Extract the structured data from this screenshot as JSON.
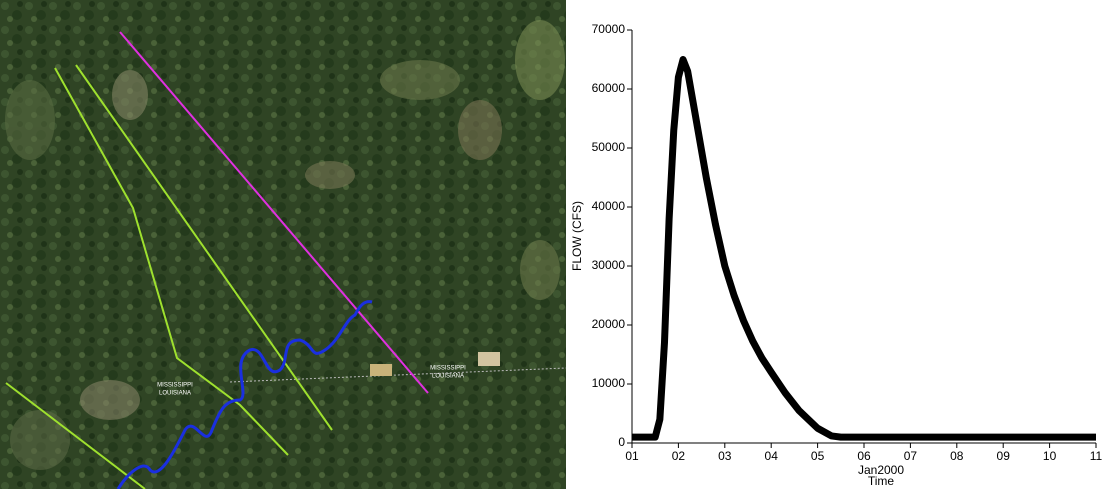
{
  "map": {
    "labels": [
      "MISSISSIPPI",
      "LOUISIANA",
      "MISSISSIPPI",
      "LOUISIANA"
    ]
  },
  "chart_data": {
    "type": "line",
    "y_label": "FLOW (CFS)",
    "x_label": "Time",
    "x_sublabel": "Jan2000",
    "x": [
      1,
      1.5,
      1.6,
      1.7,
      1.8,
      1.9,
      2.0,
      2.1,
      2.2,
      2.4,
      2.6,
      2.8,
      3.0,
      3.2,
      3.4,
      3.6,
      3.8,
      4.0,
      4.3,
      4.6,
      5.0,
      5.3,
      5.5,
      8,
      11
    ],
    "values": [
      1000,
      1000,
      4000,
      17000,
      38000,
      53000,
      62000,
      65000,
      63000,
      54000,
      45000,
      37000,
      30000,
      25000,
      20800,
      17300,
      14400,
      12000,
      8500,
      5500,
      2500,
      1200,
      1000,
      1000,
      1000
    ],
    "color": "#000000",
    "xlim": [
      1,
      11
    ],
    "xticks": [
      {
        "value": 1,
        "label": "01"
      },
      {
        "value": 2,
        "label": "02"
      },
      {
        "value": 3,
        "label": "03"
      },
      {
        "value": 4,
        "label": "04"
      },
      {
        "value": 5,
        "label": "05"
      },
      {
        "value": 6,
        "label": "06"
      },
      {
        "value": 7,
        "label": "07"
      },
      {
        "value": 8,
        "label": "08"
      },
      {
        "value": 9,
        "label": "09"
      },
      {
        "value": 10,
        "label": "10"
      },
      {
        "value": 11,
        "label": "11"
      }
    ],
    "ylim": [
      0,
      70000
    ],
    "yticks": [
      0,
      10000,
      20000,
      30000,
      40000,
      50000,
      60000,
      70000
    ]
  }
}
